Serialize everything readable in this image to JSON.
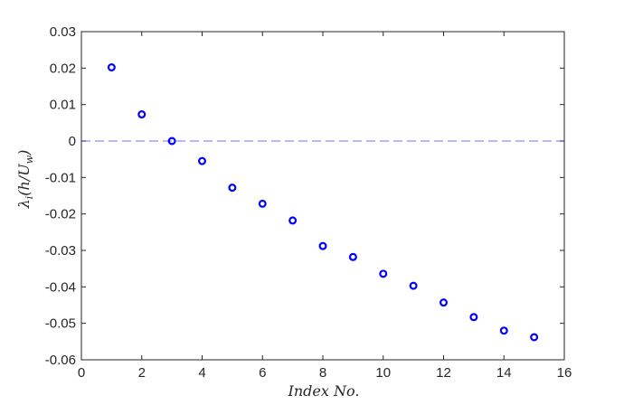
{
  "chart_data": {
    "type": "scatter",
    "xlabel": "Index No.",
    "ylabel": "λ_i(h/U_w)",
    "xlim": [
      0,
      16
    ],
    "ylim": [
      -0.06,
      0.03
    ],
    "x_ticks": [
      "0",
      "2",
      "4",
      "6",
      "8",
      "10",
      "12",
      "14",
      "16"
    ],
    "y_ticks": [
      "0.03",
      "0.02",
      "0.01",
      "0",
      "-0.01",
      "-0.02",
      "-0.03",
      "-0.04",
      "-0.05",
      "-0.06"
    ],
    "reference_line": {
      "y": 0,
      "style": "dashed"
    },
    "marker": "circle-open",
    "series": [
      {
        "x": [
          1,
          2,
          3,
          4,
          5,
          6,
          7,
          8,
          9,
          10,
          11,
          12,
          13,
          14,
          15
        ],
        "y": [
          0.0202,
          0.0073,
          0.0,
          -0.0055,
          -0.0128,
          -0.0172,
          -0.0218,
          -0.0288,
          -0.0318,
          -0.0364,
          -0.0397,
          -0.0443,
          -0.0483,
          -0.052,
          -0.0538
        ],
        "color": "#0000ff"
      }
    ],
    "grid": false,
    "box": true
  }
}
